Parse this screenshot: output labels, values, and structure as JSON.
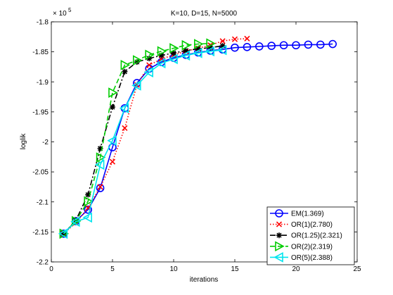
{
  "chart_data": {
    "type": "line",
    "title": "K=10, D=15, N=5000",
    "xlabel": "iterations",
    "ylabel": "loglik",
    "xlim": [
      0,
      25
    ],
    "ylim": [
      -2.2,
      -1.8
    ],
    "y_exponent_label": "× 10",
    "y_exponent_power": "5",
    "xticks": [
      0,
      5,
      10,
      15,
      20,
      25
    ],
    "xtick_labels": [
      "0",
      "5",
      "10",
      "15",
      "20",
      "25"
    ],
    "yticks": [
      -2.2,
      -2.15,
      -2.1,
      -2.05,
      -2.0,
      -1.95,
      -1.9,
      -1.85,
      -1.8
    ],
    "ytick_labels": [
      "-2.2",
      "-2.15",
      "-2.1",
      "-2.05",
      "-2",
      "-1.95",
      "-1.9",
      "-1.85",
      "-1.8"
    ],
    "grid": false,
    "legend_position": "bottom-right",
    "series": [
      {
        "name": "EM(1.369)",
        "color": "#0000ff",
        "line_style": "solid",
        "marker": "circle",
        "x": [
          1,
          2,
          3,
          4,
          5,
          6,
          7,
          8,
          9,
          10,
          11,
          12,
          13,
          14,
          15,
          16,
          17,
          18,
          19,
          20,
          21,
          22,
          23
        ],
        "y": [
          -2.153,
          -2.132,
          -2.113,
          -2.077,
          -2.009,
          -1.944,
          -1.902,
          -1.878,
          -1.867,
          -1.86,
          -1.855,
          -1.851,
          -1.848,
          -1.846,
          -1.843,
          -1.842,
          -1.841,
          -1.84,
          -1.839,
          -1.839,
          -1.838,
          -1.838,
          -1.837
        ]
      },
      {
        "name": "OR(1)(2.780)",
        "color": "#ff0000",
        "line_style": "dotted",
        "marker": "x",
        "x": [
          1,
          2,
          3,
          4,
          5,
          6,
          7,
          8,
          9,
          10,
          11,
          12,
          13,
          14,
          15,
          16
        ],
        "y": [
          -2.153,
          -2.135,
          -2.11,
          -2.075,
          -2.033,
          -1.977,
          -1.905,
          -1.872,
          -1.862,
          -1.855,
          -1.849,
          -1.844,
          -1.839,
          -1.832,
          -1.829,
          -1.828
        ]
      },
      {
        "name": "OR(1.25)(2.321)",
        "color": "#000000",
        "line_style": "dashdot",
        "marker": "star",
        "x": [
          1,
          2,
          3,
          4,
          5,
          6,
          7,
          8,
          9,
          10,
          11,
          12,
          13,
          14
        ],
        "y": [
          -2.153,
          -2.131,
          -2.088,
          -2.011,
          -1.942,
          -1.883,
          -1.867,
          -1.861,
          -1.856,
          -1.852,
          -1.848,
          -1.845,
          -1.843,
          -1.84
        ]
      },
      {
        "name": "OR(2)(2.319)",
        "color": "#00cc00",
        "line_style": "dashed",
        "marker": "triangle-right",
        "x": [
          1,
          2,
          3,
          4,
          5,
          6,
          7,
          8,
          9,
          10,
          11,
          12,
          13
        ],
        "y": [
          -2.153,
          -2.132,
          -2.099,
          -2.026,
          -1.918,
          -1.872,
          -1.864,
          -1.855,
          -1.849,
          -1.844,
          -1.839,
          -1.837,
          -1.836
        ]
      },
      {
        "name": "OR(5)(2.388)",
        "color": "#00e5ee",
        "line_style": "solid",
        "marker": "triangle-left",
        "x": [
          1,
          2,
          3,
          4,
          5,
          6,
          7,
          8,
          9,
          10,
          11,
          12,
          13,
          14
        ],
        "y": [
          -2.153,
          -2.133,
          -2.126,
          -2.038,
          -1.998,
          -1.944,
          -1.906,
          -1.884,
          -1.869,
          -1.862,
          -1.856,
          -1.852,
          -1.849,
          -1.847
        ]
      }
    ]
  }
}
